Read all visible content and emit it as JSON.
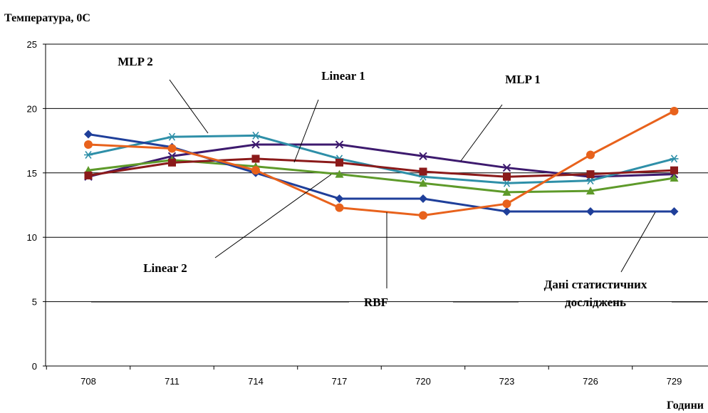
{
  "chart_data": {
    "type": "line",
    "ylabel": "Температура, 0С",
    "xlabel": "Години",
    "categories": [
      "708",
      "711",
      "714",
      "717",
      "720",
      "723",
      "726",
      "729"
    ],
    "ylim": [
      0,
      25
    ],
    "yticks": [
      0,
      5,
      10,
      15,
      20,
      25
    ],
    "grid": "horizontal",
    "series": [
      {
        "name": "Дані статистичних досліджень",
        "color": "#1f3f9a",
        "marker": "diamond",
        "values": [
          18.0,
          17.0,
          15.0,
          13.0,
          13.0,
          12.0,
          12.0,
          12.0
        ]
      },
      {
        "name": "Linear 1",
        "color": "#8b1a1a",
        "marker": "square",
        "values": [
          14.8,
          15.8,
          16.1,
          15.8,
          15.1,
          14.7,
          14.9,
          15.2
        ]
      },
      {
        "name": "Linear 2",
        "color": "#5e9a2a",
        "marker": "triangle",
        "values": [
          15.2,
          16.0,
          15.5,
          14.9,
          14.2,
          13.5,
          13.6,
          14.6
        ]
      },
      {
        "name": "MLP 1",
        "color": "#3d1a6e",
        "marker": "x",
        "values": [
          14.7,
          16.3,
          17.2,
          17.2,
          16.3,
          15.4,
          14.7,
          14.9
        ]
      },
      {
        "name": "MLP 2",
        "color": "#2e8fa8",
        "marker": "star",
        "values": [
          16.4,
          17.8,
          17.9,
          16.1,
          14.7,
          14.2,
          14.4,
          16.1
        ]
      },
      {
        "name": "RBF",
        "color": "#e8621c",
        "marker": "circle",
        "values": [
          17.2,
          16.9,
          15.2,
          12.3,
          11.7,
          12.6,
          16.4,
          19.8
        ]
      }
    ],
    "annotations": [
      "MLP 2",
      "Linear 1",
      "MLP 1",
      "Linear 2",
      "RBF",
      "Дані статистичних",
      "досліджень"
    ]
  }
}
